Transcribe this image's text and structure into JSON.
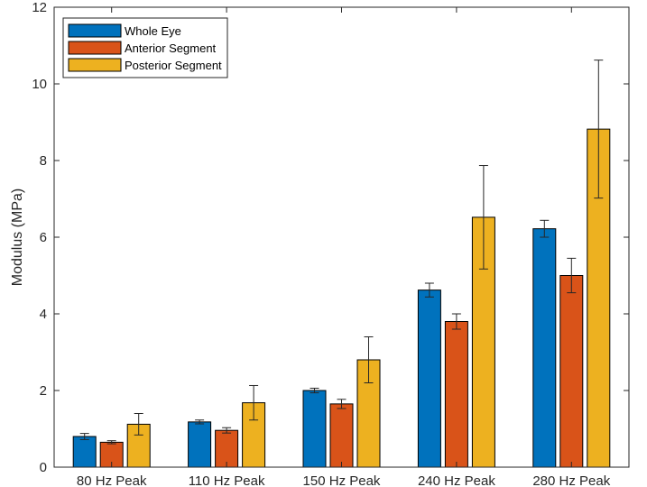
{
  "chart_data": {
    "type": "bar",
    "categories": [
      "80 Hz Peak",
      "110 Hz Peak",
      "150 Hz Peak",
      "240 Hz Peak",
      "280 Hz Peak"
    ],
    "series": [
      {
        "name": "Whole Eye",
        "color": "#0072BD",
        "values": [
          0.8,
          1.18,
          2.0,
          4.62,
          6.22
        ],
        "error": [
          0.08,
          0.05,
          0.06,
          0.18,
          0.22
        ]
      },
      {
        "name": "Anterior Segment",
        "color": "#D95319",
        "values": [
          0.65,
          0.96,
          1.65,
          3.8,
          5.0
        ],
        "error": [
          0.04,
          0.07,
          0.12,
          0.2,
          0.45
        ]
      },
      {
        "name": "Posterior Segment",
        "color": "#EDB120",
        "values": [
          1.12,
          1.68,
          2.8,
          6.52,
          8.82
        ],
        "error": [
          0.28,
          0.45,
          0.6,
          1.35,
          1.8
        ]
      }
    ],
    "ylabel": "Modulus (MPa)",
    "xlabel": "",
    "title": "",
    "ylim": [
      0,
      12
    ],
    "yticks": [
      "0",
      "2",
      "4",
      "6",
      "8",
      "10",
      "12"
    ],
    "legend_position": "top-left",
    "grid": false
  }
}
